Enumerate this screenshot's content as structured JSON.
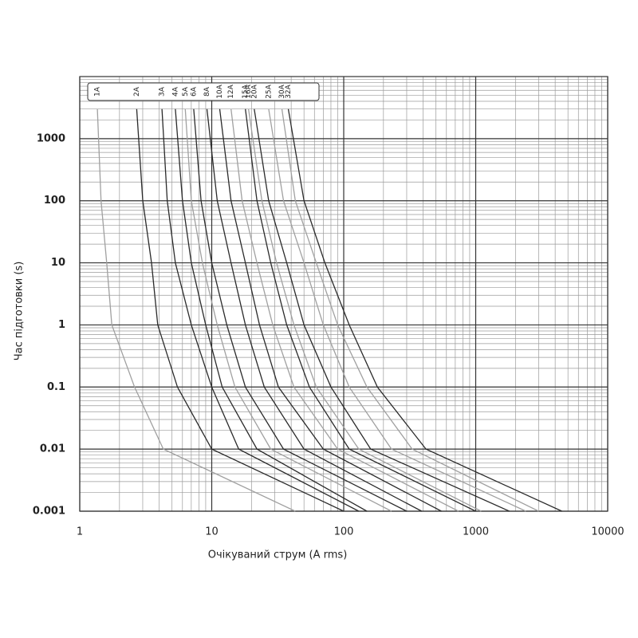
{
  "chart_data": {
    "type": "line",
    "x_label": "Очікуваний струм (A rms)",
    "y_label": "Час підготовки (s)",
    "x_log": true,
    "y_log": true,
    "grid": true,
    "xlim": [
      1,
      10000
    ],
    "xticks": [
      1,
      10,
      100,
      1000,
      10000
    ],
    "ylim": [
      0.001,
      10000
    ],
    "yticks": [
      0.001,
      0.01,
      0.1,
      1,
      10,
      100,
      1000
    ],
    "series": [
      {
        "name": "1A",
        "color": "#a0a0a0",
        "x": [
          1.36,
          1.45,
          1.6,
          1.75,
          2.6,
          4.3,
          43
        ],
        "values": [
          3000,
          100,
          10,
          1,
          0.1,
          0.01,
          0.001
        ]
      },
      {
        "name": "2A",
        "color": "#2a2a2a",
        "x": [
          2.7,
          3,
          3.5,
          3.9,
          5.5,
          10,
          100
        ],
        "values": [
          3000,
          100,
          10,
          1,
          0.1,
          0.01,
          0.001
        ]
      },
      {
        "name": "3A",
        "color": "#2a2a2a",
        "x": [
          4.2,
          4.6,
          5.3,
          7,
          10,
          16,
          130
        ],
        "values": [
          3000,
          100,
          10,
          1,
          0.1,
          0.01,
          0.001
        ]
      },
      {
        "name": "4A",
        "color": "#2a2a2a",
        "x": [
          5.3,
          6,
          7,
          9,
          12,
          22,
          150
        ],
        "values": [
          3000,
          100,
          10,
          1,
          0.1,
          0.01,
          0.001
        ]
      },
      {
        "name": "5A",
        "color": "#a0a0a0",
        "x": [
          6.3,
          7,
          8.5,
          11,
          15,
          28,
          230
        ],
        "values": [
          3000,
          100,
          10,
          1,
          0.1,
          0.01,
          0.001
        ]
      },
      {
        "name": "6A",
        "color": "#2a2a2a",
        "x": [
          7.3,
          8.3,
          10,
          13,
          18,
          35,
          300
        ],
        "values": [
          3000,
          100,
          10,
          1,
          0.1,
          0.01,
          0.001
        ]
      },
      {
        "name": "8A",
        "color": "#2a2a2a",
        "x": [
          9.2,
          11,
          14,
          18,
          25,
          50,
          390
        ],
        "values": [
          3000,
          100,
          10,
          1,
          0.1,
          0.01,
          0.001
        ]
      },
      {
        "name": "10A",
        "color": "#2a2a2a",
        "x": [
          11.5,
          14,
          18,
          23,
          32,
          70,
          550
        ],
        "values": [
          3000,
          100,
          10,
          1,
          0.1,
          0.01,
          0.001
        ]
      },
      {
        "name": "12A",
        "color": "#a0a0a0",
        "x": [
          14,
          17,
          22,
          29,
          42,
          90,
          740
        ],
        "values": [
          3000,
          100,
          10,
          1,
          0.1,
          0.01,
          0.001
        ]
      },
      {
        "name": "15A",
        "color": "#2a2a2a",
        "x": [
          18,
          22,
          28,
          37,
          55,
          110,
          1000
        ],
        "values": [
          3000,
          100,
          10,
          1,
          0.1,
          0.01,
          0.001
        ]
      },
      {
        "name": "16A",
        "color": "#a0a0a0",
        "x": [
          19,
          24,
          31,
          42,
          62,
          130,
          1100
        ],
        "values": [
          3000,
          100,
          10,
          1,
          0.1,
          0.01,
          0.001
        ]
      },
      {
        "name": "20A",
        "color": "#2a2a2a",
        "x": [
          21,
          27,
          37,
          50,
          80,
          160,
          1800
        ],
        "values": [
          3000,
          100,
          10,
          1,
          0.1,
          0.01,
          0.001
        ]
      },
      {
        "name": "25A",
        "color": "#a0a0a0",
        "x": [
          27,
          35,
          50,
          70,
          110,
          230,
          2400
        ],
        "values": [
          3000,
          100,
          10,
          1,
          0.1,
          0.01,
          0.001
        ]
      },
      {
        "name": "30A",
        "color": "#a0a0a0",
        "x": [
          34,
          43,
          62,
          90,
          150,
          330,
          3000
        ],
        "values": [
          3000,
          100,
          10,
          1,
          0.1,
          0.01,
          0.001
        ]
      },
      {
        "name": "32A",
        "color": "#2a2a2a",
        "x": [
          38,
          50,
          72,
          110,
          180,
          420,
          4500
        ],
        "values": [
          3000,
          100,
          10,
          1,
          0.1,
          0.01,
          0.001
        ]
      }
    ]
  }
}
